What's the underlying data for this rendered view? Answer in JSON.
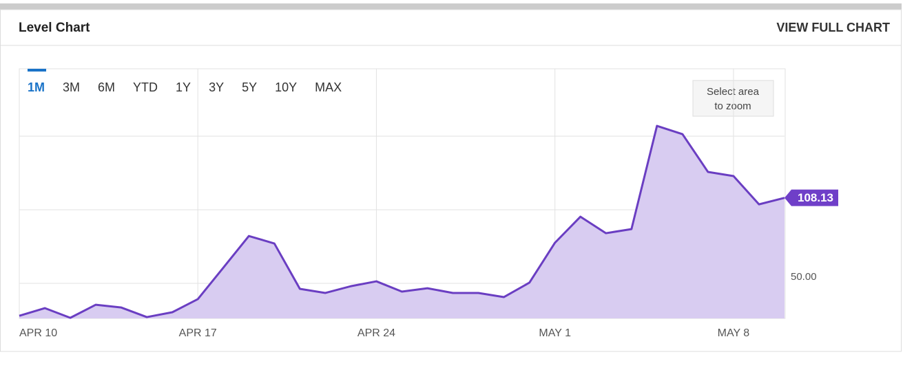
{
  "header": {
    "title": "Level Chart",
    "link": "VIEW FULL CHART"
  },
  "range_buttons": [
    "1M",
    "3M",
    "6M",
    "YTD",
    "1Y",
    "3Y",
    "5Y",
    "10Y",
    "MAX"
  ],
  "active_range_index": 0,
  "zoom_hint": [
    "Select area",
    "to zoom"
  ],
  "chart_data": {
    "type": "area",
    "x": [
      0,
      1,
      2,
      3,
      4,
      5,
      6,
      7,
      8,
      9,
      10,
      11,
      12,
      13,
      14,
      15,
      16,
      17,
      18,
      19,
      20,
      21,
      22,
      23,
      24,
      25,
      26,
      27,
      28,
      29,
      30
    ],
    "xlim": [
      0,
      30
    ],
    "xticks": [
      {
        "value": 0,
        "label": "APR 10"
      },
      {
        "value": 7,
        "label": "APR 17"
      },
      {
        "value": 14,
        "label": "APR 24"
      },
      {
        "value": 21,
        "label": "MAY 1"
      },
      {
        "value": 28,
        "label": "MAY 8"
      }
    ],
    "series": [
      {
        "color": "#6a3ec2",
        "fill": "#d8ccf1",
        "values": [
          28.0,
          33.2,
          26.6,
          35.5,
          33.6,
          27.1,
          30.4,
          39.3,
          60.7,
          82.2,
          77.1,
          46.3,
          43.5,
          48.1,
          51.4,
          44.4,
          46.7,
          43.5,
          43.5,
          40.7,
          50.5,
          77.6,
          95.3,
          84.1,
          86.9,
          157.0,
          151.4,
          125.7,
          122.9,
          103.7,
          108.13
        ]
      }
    ],
    "ylim": [
      26.2,
      195.8
    ],
    "yticks": [
      {
        "value": 50,
        "label": "50.00"
      }
    ],
    "ygrid": [
      50,
      100,
      150
    ],
    "grid": true,
    "last_value_color": "#6f3fc8"
  }
}
